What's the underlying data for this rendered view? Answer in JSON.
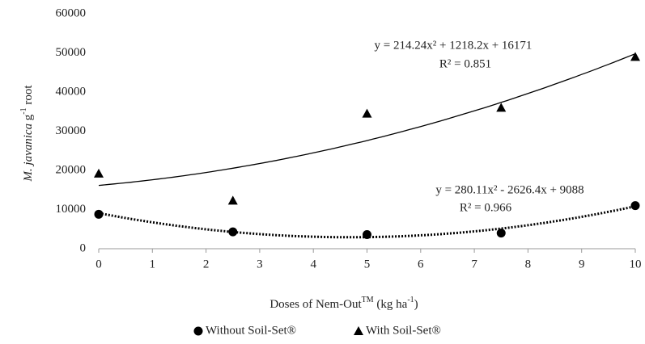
{
  "chart_data": {
    "type": "scatter",
    "x": [
      0,
      2.5,
      5,
      7.5,
      10
    ],
    "series": [
      {
        "name": "Without Soil-Set®",
        "color": "#000000",
        "marker": "circle",
        "values": [
          8800,
          4300,
          3600,
          4000,
          11000
        ]
      },
      {
        "name": "With Soil-Set®",
        "color": "#000000",
        "marker": "triangle",
        "values": [
          19200,
          12300,
          34500,
          36000,
          49000
        ]
      }
    ],
    "trendlines": [
      {
        "series": 0,
        "style": "dotted",
        "equation": "y = 280.11x² - 2626.4x + 9088",
        "r2": "R² = 0.966",
        "coefficients": [
          280.11,
          -2626.4,
          9088
        ]
      },
      {
        "series": 1,
        "style": "solid",
        "equation": "y = 214.24x² + 1218.2x + 16171",
        "r2": "R² = 0.851",
        "coefficients": [
          214.24,
          1218.2,
          16171
        ]
      }
    ],
    "xlim": [
      0,
      10
    ],
    "xticks": [
      0,
      1,
      2,
      3,
      4,
      5,
      6,
      7,
      8,
      9,
      10
    ],
    "ylim": [
      0,
      60000
    ],
    "yticks": [
      0,
      10000,
      20000,
      30000,
      40000,
      50000,
      60000
    ],
    "x_label_parts": [
      "Doses of Nem-Out",
      "TM",
      " (kg ha",
      "-1",
      ")"
    ],
    "y_label_parts": [
      "M. javanica",
      " g",
      "-1",
      " root"
    ],
    "grid": false,
    "legend": "bottom"
  }
}
